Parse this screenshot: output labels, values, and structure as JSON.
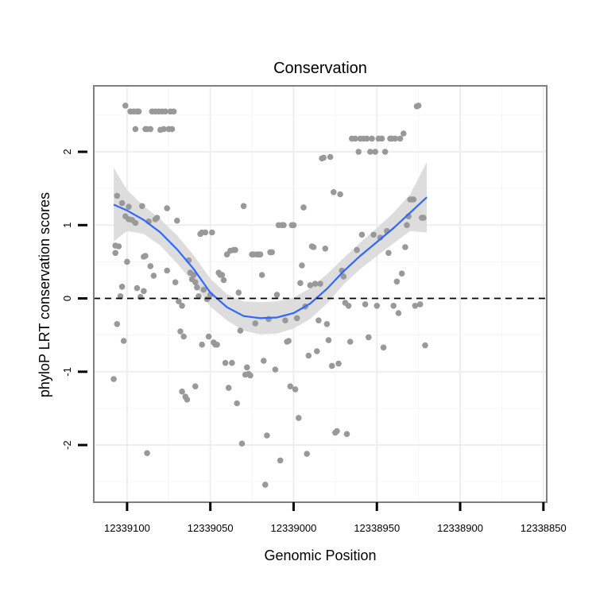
{
  "chart_data": {
    "type": "scatter",
    "title": "Conservation",
    "xlabel": "Genomic Position",
    "ylabel": "phyloP LRT conservation scores",
    "x_reversed": true,
    "xlim": [
      12339120,
      12338848
    ],
    "ylim": [
      -2.78,
      2.9
    ],
    "x_ticks": [
      12339100,
      12339050,
      12339000,
      12338950,
      12338900,
      12338850
    ],
    "x_tick_labels": [
      "12339100",
      "12339050",
      "12339000",
      "12338950",
      "12338900",
      "12338850"
    ],
    "y_ticks": [
      -2,
      -1,
      0,
      1,
      2
    ],
    "y_tick_labels": [
      "-2",
      "-1",
      "0",
      "1",
      "2"
    ],
    "grid": true,
    "reference_line": {
      "y": 0,
      "style": "dashed"
    },
    "colors": {
      "points": "#999999",
      "smooth": "#3366ff",
      "ribbon": "#d9d9d9",
      "grid": "#eeeeee",
      "panel_border": "#7f7f7f"
    },
    "series": [
      {
        "name": "phyloP scores",
        "type": "scatter",
        "points": [
          [
            12339108,
            -1.1
          ],
          [
            12339107,
            0.62
          ],
          [
            12339107,
            0.72
          ],
          [
            12339106,
            1.4
          ],
          [
            12339106,
            -0.35
          ],
          [
            12339105,
            0.71
          ],
          [
            12339104,
            0.03
          ],
          [
            12339103,
            0.16
          ],
          [
            12339103,
            1.3
          ],
          [
            12339102,
            -0.58
          ],
          [
            12339101,
            1.12
          ],
          [
            12339101,
            2.63
          ],
          [
            12339100,
            0.5
          ],
          [
            12339099,
            1.08
          ],
          [
            12339099,
            1.25
          ],
          [
            12339098,
            2.55
          ],
          [
            12339097,
            1.07
          ],
          [
            12339096,
            2.55
          ],
          [
            12339095,
            2.31
          ],
          [
            12339095,
            1.03
          ],
          [
            12339094,
            2.55
          ],
          [
            12339094,
            0.14
          ],
          [
            12339093,
            2.55
          ],
          [
            12339092,
            0.02
          ],
          [
            12339091,
            1.26
          ],
          [
            12339090,
            0.57
          ],
          [
            12339090,
            0.1
          ],
          [
            12339089,
            2.31
          ],
          [
            12339089,
            0.58
          ],
          [
            12339088,
            2.31
          ],
          [
            12339088,
            -2.11
          ],
          [
            12339087,
            1.05
          ],
          [
            12339086,
            0.44
          ],
          [
            12339086,
            2.31
          ],
          [
            12339085,
            2.55
          ],
          [
            12339084,
            0.31
          ],
          [
            12339083,
            2.55
          ],
          [
            12339083,
            1.08
          ],
          [
            12339082,
            1.1
          ],
          [
            12339081,
            2.55
          ],
          [
            12339080,
            2.3
          ],
          [
            12339079,
            2.55
          ],
          [
            12339078,
            2.31
          ],
          [
            12339077,
            2.55
          ],
          [
            12339076,
            0.38
          ],
          [
            12339076,
            1.23
          ],
          [
            12339075,
            2.31
          ],
          [
            12339074,
            2.55
          ],
          [
            12339073,
            2.31
          ],
          [
            12339072,
            2.55
          ],
          [
            12339071,
            0.22
          ],
          [
            12339070,
            1.06
          ],
          [
            12339069,
            -0.04
          ],
          [
            12339068,
            -0.45
          ],
          [
            12339067,
            -1.27
          ],
          [
            12339067,
            -0.1
          ],
          [
            12339066,
            -0.52
          ],
          [
            12339065,
            -1.34
          ],
          [
            12339064,
            -1.38
          ],
          [
            12339063,
            0.52
          ],
          [
            12339062,
            0.35
          ],
          [
            12339061,
            0.26
          ],
          [
            12339060,
            0.32
          ],
          [
            12339059,
            -1.2
          ],
          [
            12339059,
            0.22
          ],
          [
            12339058,
            0.15
          ],
          [
            12339057,
            0.03
          ],
          [
            12339056,
            0.88
          ],
          [
            12339055,
            -0.63
          ],
          [
            12339055,
            0.9
          ],
          [
            12339054,
            0.12
          ],
          [
            12339053,
            0.9
          ],
          [
            12339052,
            -0.01
          ],
          [
            12339051,
            -0.52
          ],
          [
            12339050,
            0.05
          ],
          [
            12339049,
            0.9
          ],
          [
            12339048,
            -0.6
          ],
          [
            12339047,
            -0.63
          ],
          [
            12339046,
            -0.63
          ],
          [
            12339045,
            0.35
          ],
          [
            12339044,
            0.32
          ],
          [
            12339043,
            0.32
          ],
          [
            12339042,
            0.25
          ],
          [
            12339041,
            -0.88
          ],
          [
            12339040,
            0.6
          ],
          [
            12339039,
            -1.22
          ],
          [
            12339038,
            0.65
          ],
          [
            12339037,
            -0.88
          ],
          [
            12339036,
            0.66
          ],
          [
            12339035,
            0.66
          ],
          [
            12339034,
            -1.43
          ],
          [
            12339033,
            0.08
          ],
          [
            12339032,
            -0.44
          ],
          [
            12339031,
            -1.98
          ],
          [
            12339030,
            1.26
          ],
          [
            12339029,
            -1.04
          ],
          [
            12339028,
            -0.94
          ],
          [
            12339027,
            -1.03
          ],
          [
            12339026,
            -1.05
          ],
          [
            12339025,
            0.6
          ],
          [
            12339024,
            0.6
          ],
          [
            12339023,
            -0.34
          ],
          [
            12339022,
            0.6
          ],
          [
            12339021,
            0.6
          ],
          [
            12339020,
            0.6
          ],
          [
            12339019,
            0.32
          ],
          [
            12339018,
            -0.85
          ],
          [
            12339017,
            -2.54
          ],
          [
            12339016,
            -1.87
          ],
          [
            12339015,
            -0.28
          ],
          [
            12339014,
            0.63
          ],
          [
            12339013,
            0.63
          ],
          [
            12339011,
            -0.97
          ],
          [
            12339010,
            0.05
          ],
          [
            12339009,
            1.0
          ],
          [
            12339008,
            -2.21
          ],
          [
            12339007,
            1.0
          ],
          [
            12339006,
            1.0
          ],
          [
            12339005,
            -0.3
          ],
          [
            12339004,
            -0.59
          ],
          [
            12339003,
            -0.58
          ],
          [
            12339002,
            -1.2
          ],
          [
            12339001,
            1.0
          ],
          [
            12339000,
            1.0
          ],
          [
            12338999,
            -1.24
          ],
          [
            12338998,
            -0.27
          ],
          [
            12338997,
            -1.63
          ],
          [
            12338996,
            0.21
          ],
          [
            12338995,
            0.45
          ],
          [
            12338994,
            1.24
          ],
          [
            12338993,
            -0.11
          ],
          [
            12338992,
            -2.12
          ],
          [
            12338991,
            -0.78
          ],
          [
            12338990,
            0.18
          ],
          [
            12338989,
            0.71
          ],
          [
            12338988,
            0.7
          ],
          [
            12338987,
            0.2
          ],
          [
            12338986,
            -0.72
          ],
          [
            12338985,
            -0.3
          ],
          [
            12338984,
            0.2
          ],
          [
            12338983,
            1.91
          ],
          [
            12338982,
            1.92
          ],
          [
            12338981,
            0.68
          ],
          [
            12338980,
            -0.35
          ],
          [
            12338979,
            -0.57
          ],
          [
            12338978,
            1.93
          ],
          [
            12338977,
            -0.92
          ],
          [
            12338976,
            1.45
          ],
          [
            12338975,
            -1.83
          ],
          [
            12338974,
            -1.81
          ],
          [
            12338973,
            -0.89
          ],
          [
            12338972,
            1.42
          ],
          [
            12338971,
            0.38
          ],
          [
            12338970,
            0.3
          ],
          [
            12338969,
            -0.06
          ],
          [
            12338968,
            -1.85
          ],
          [
            12338967,
            -0.1
          ],
          [
            12338966,
            -0.59
          ],
          [
            12338965,
            2.18
          ],
          [
            12338963,
            2.18
          ],
          [
            12338962,
            0.66
          ],
          [
            12338961,
            2.0
          ],
          [
            12338960,
            2.18
          ],
          [
            12338959,
            0.87
          ],
          [
            12338958,
            2.18
          ],
          [
            12338957,
            -0.08
          ],
          [
            12338956,
            2.18
          ],
          [
            12338955,
            -0.53
          ],
          [
            12338954,
            2.0
          ],
          [
            12338953,
            2.18
          ],
          [
            12338952,
            0.87
          ],
          [
            12338951,
            2.0
          ],
          [
            12338950,
            -0.1
          ],
          [
            12338949,
            2.18
          ],
          [
            12338948,
            0.83
          ],
          [
            12338947,
            2.18
          ],
          [
            12338946,
            -0.67
          ],
          [
            12338945,
            2.0
          ],
          [
            12338944,
            0.92
          ],
          [
            12338943,
            0.62
          ],
          [
            12338942,
            2.18
          ],
          [
            12338941,
            2.18
          ],
          [
            12338940,
            -0.1
          ],
          [
            12338939,
            2.18
          ],
          [
            12338938,
            0.23
          ],
          [
            12338937,
            -0.2
          ],
          [
            12338936,
            2.18
          ],
          [
            12338935,
            0.34
          ],
          [
            12338934,
            2.25
          ],
          [
            12338933,
            0.7
          ],
          [
            12338932,
            1.0
          ],
          [
            12338931,
            1.12
          ],
          [
            12338930,
            1.35
          ],
          [
            12338929,
            1.35
          ],
          [
            12338928,
            1.35
          ],
          [
            12338927,
            -0.1
          ],
          [
            12338926,
            2.62
          ],
          [
            12338925,
            2.63
          ],
          [
            12338924,
            -0.08
          ],
          [
            12338923,
            1.1
          ],
          [
            12338922,
            1.1
          ],
          [
            12338921,
            -0.64
          ]
        ]
      },
      {
        "name": "loess fit",
        "type": "line",
        "points": [
          [
            12339108,
            1.28
          ],
          [
            12339100,
            1.2
          ],
          [
            12339090,
            1.07
          ],
          [
            12339080,
            0.9
          ],
          [
            12339070,
            0.67
          ],
          [
            12339060,
            0.4
          ],
          [
            12339050,
            0.08
          ],
          [
            12339040,
            -0.12
          ],
          [
            12339030,
            -0.24
          ],
          [
            12339020,
            -0.27
          ],
          [
            12339010,
            -0.26
          ],
          [
            12339000,
            -0.2
          ],
          [
            12338990,
            -0.07
          ],
          [
            12338980,
            0.13
          ],
          [
            12338970,
            0.37
          ],
          [
            12338960,
            0.58
          ],
          [
            12338950,
            0.77
          ],
          [
            12338940,
            0.96
          ],
          [
            12338930,
            1.17
          ],
          [
            12338920,
            1.38
          ]
        ]
      },
      {
        "name": "confidence band",
        "type": "ribbon",
        "x": [
          12339108,
          12339100,
          12339090,
          12339080,
          12339070,
          12339060,
          12339050,
          12339040,
          12339030,
          12339020,
          12339010,
          12339000,
          12338990,
          12338980,
          12338970,
          12338960,
          12338950,
          12338940,
          12338930,
          12338920
        ],
        "upper": [
          1.78,
          1.48,
          1.26,
          1.08,
          0.86,
          0.59,
          0.27,
          0.06,
          -0.04,
          -0.05,
          -0.04,
          0.01,
          0.14,
          0.33,
          0.55,
          0.76,
          0.96,
          1.17,
          1.42,
          1.86
        ],
        "lower": [
          0.78,
          0.92,
          0.88,
          0.72,
          0.48,
          0.21,
          -0.11,
          -0.3,
          -0.44,
          -0.49,
          -0.48,
          -0.41,
          -0.28,
          -0.07,
          0.19,
          0.4,
          0.58,
          0.75,
          0.92,
          0.9
        ]
      }
    ]
  }
}
